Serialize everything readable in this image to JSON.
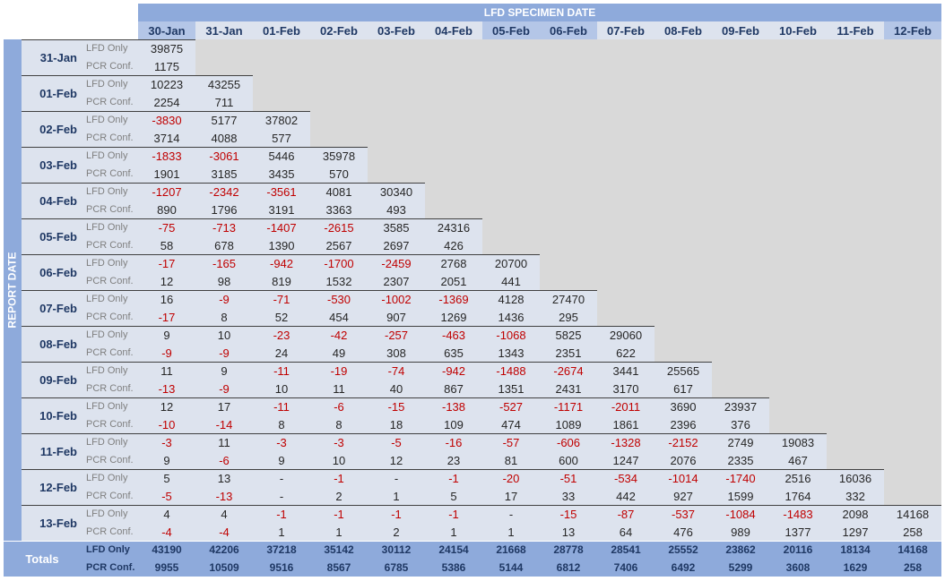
{
  "header": {
    "super_title": "LFD SPECIMEN DATE",
    "side_title": "REPORT DATE"
  },
  "columns": [
    "30-Jan",
    "31-Jan",
    "01-Feb",
    "02-Feb",
    "03-Feb",
    "04-Feb",
    "05-Feb",
    "06-Feb",
    "07-Feb",
    "08-Feb",
    "09-Feb",
    "10-Feb",
    "11-Feb",
    "12-Feb"
  ],
  "row_labels": {
    "lfd": "LFD Only",
    "pcr": "PCR Conf."
  },
  "rows": [
    {
      "date": "31-Jan",
      "lfd": [
        "39875"
      ],
      "pcr": [
        "1175"
      ]
    },
    {
      "date": "01-Feb",
      "lfd": [
        "10223",
        "43255"
      ],
      "pcr": [
        "2254",
        "711"
      ]
    },
    {
      "date": "02-Feb",
      "lfd": [
        "-3830",
        "5177",
        "37802"
      ],
      "pcr": [
        "3714",
        "4088",
        "577"
      ]
    },
    {
      "date": "03-Feb",
      "lfd": [
        "-1833",
        "-3061",
        "5446",
        "35978"
      ],
      "pcr": [
        "1901",
        "3185",
        "3435",
        "570"
      ]
    },
    {
      "date": "04-Feb",
      "lfd": [
        "-1207",
        "-2342",
        "-3561",
        "4081",
        "30340"
      ],
      "pcr": [
        "890",
        "1796",
        "3191",
        "3363",
        "493"
      ]
    },
    {
      "date": "05-Feb",
      "lfd": [
        "-75",
        "-713",
        "-1407",
        "-2615",
        "3585",
        "24316"
      ],
      "pcr": [
        "58",
        "678",
        "1390",
        "2567",
        "2697",
        "426"
      ]
    },
    {
      "date": "06-Feb",
      "lfd": [
        "-17",
        "-165",
        "-942",
        "-1700",
        "-2459",
        "2768",
        "20700"
      ],
      "pcr": [
        "12",
        "98",
        "819",
        "1532",
        "2307",
        "2051",
        "441"
      ]
    },
    {
      "date": "07-Feb",
      "lfd": [
        "16",
        "-9",
        "-71",
        "-530",
        "-1002",
        "-1369",
        "4128",
        "27470"
      ],
      "pcr": [
        "-17",
        "8",
        "52",
        "454",
        "907",
        "1269",
        "1436",
        "295"
      ]
    },
    {
      "date": "08-Feb",
      "lfd": [
        "9",
        "10",
        "-23",
        "-42",
        "-257",
        "-463",
        "-1068",
        "5825",
        "29060"
      ],
      "pcr": [
        "-9",
        "-9",
        "24",
        "49",
        "308",
        "635",
        "1343",
        "2351",
        "622"
      ]
    },
    {
      "date": "09-Feb",
      "lfd": [
        "11",
        "9",
        "-11",
        "-19",
        "-74",
        "-942",
        "-1488",
        "-2674",
        "3441",
        "25565"
      ],
      "pcr": [
        "-13",
        "-9",
        "10",
        "11",
        "40",
        "867",
        "1351",
        "2431",
        "3170",
        "617"
      ]
    },
    {
      "date": "10-Feb",
      "lfd": [
        "12",
        "17",
        "-11",
        "-6",
        "-15",
        "-138",
        "-527",
        "-1171",
        "-2011",
        "3690",
        "23937"
      ],
      "pcr": [
        "-10",
        "-14",
        "8",
        "8",
        "18",
        "109",
        "474",
        "1089",
        "1861",
        "2396",
        "376"
      ]
    },
    {
      "date": "11-Feb",
      "lfd": [
        "-3",
        "11",
        "-3",
        "-3",
        "-5",
        "-16",
        "-57",
        "-606",
        "-1328",
        "-2152",
        "2749",
        "19083"
      ],
      "pcr": [
        "9",
        "-6",
        "9",
        "10",
        "12",
        "23",
        "81",
        "600",
        "1247",
        "2076",
        "2335",
        "467"
      ]
    },
    {
      "date": "12-Feb",
      "lfd": [
        "5",
        "13",
        "-",
        "-1",
        "-",
        "-1",
        "-20",
        "-51",
        "-534",
        "-1014",
        "-1740",
        "2516",
        "16036"
      ],
      "pcr": [
        "-5",
        "-13",
        "-",
        "2",
        "1",
        "5",
        "17",
        "33",
        "442",
        "927",
        "1599",
        "1764",
        "332"
      ]
    },
    {
      "date": "13-Feb",
      "lfd": [
        "4",
        "4",
        "-1",
        "-1",
        "-1",
        "-1",
        "-",
        "-15",
        "-87",
        "-537",
        "-1084",
        "-1483",
        "2098",
        "14168"
      ],
      "pcr": [
        "-4",
        "-4",
        "1",
        "1",
        "2",
        "1",
        "1",
        "13",
        "64",
        "476",
        "989",
        "1377",
        "1297",
        "258"
      ]
    }
  ],
  "totals": {
    "label": "Totals",
    "lfd": [
      "43190",
      "42206",
      "37218",
      "35142",
      "30112",
      "24154",
      "21668",
      "28778",
      "28541",
      "25552",
      "23862",
      "20116",
      "18134",
      "14168"
    ],
    "pcr": [
      "9955",
      "10509",
      "9516",
      "8567",
      "6785",
      "5386",
      "5144",
      "6812",
      "7406",
      "6492",
      "5299",
      "3608",
      "1629",
      "258"
    ]
  },
  "colors": {
    "header_blue": "#8eaadb",
    "col_header_odd": "#b4c6e7",
    "cell_light": "#dde3ee",
    "empty_gray": "#d9d9d9",
    "negative_red": "#c00000",
    "label_navy": "#1f3864"
  }
}
